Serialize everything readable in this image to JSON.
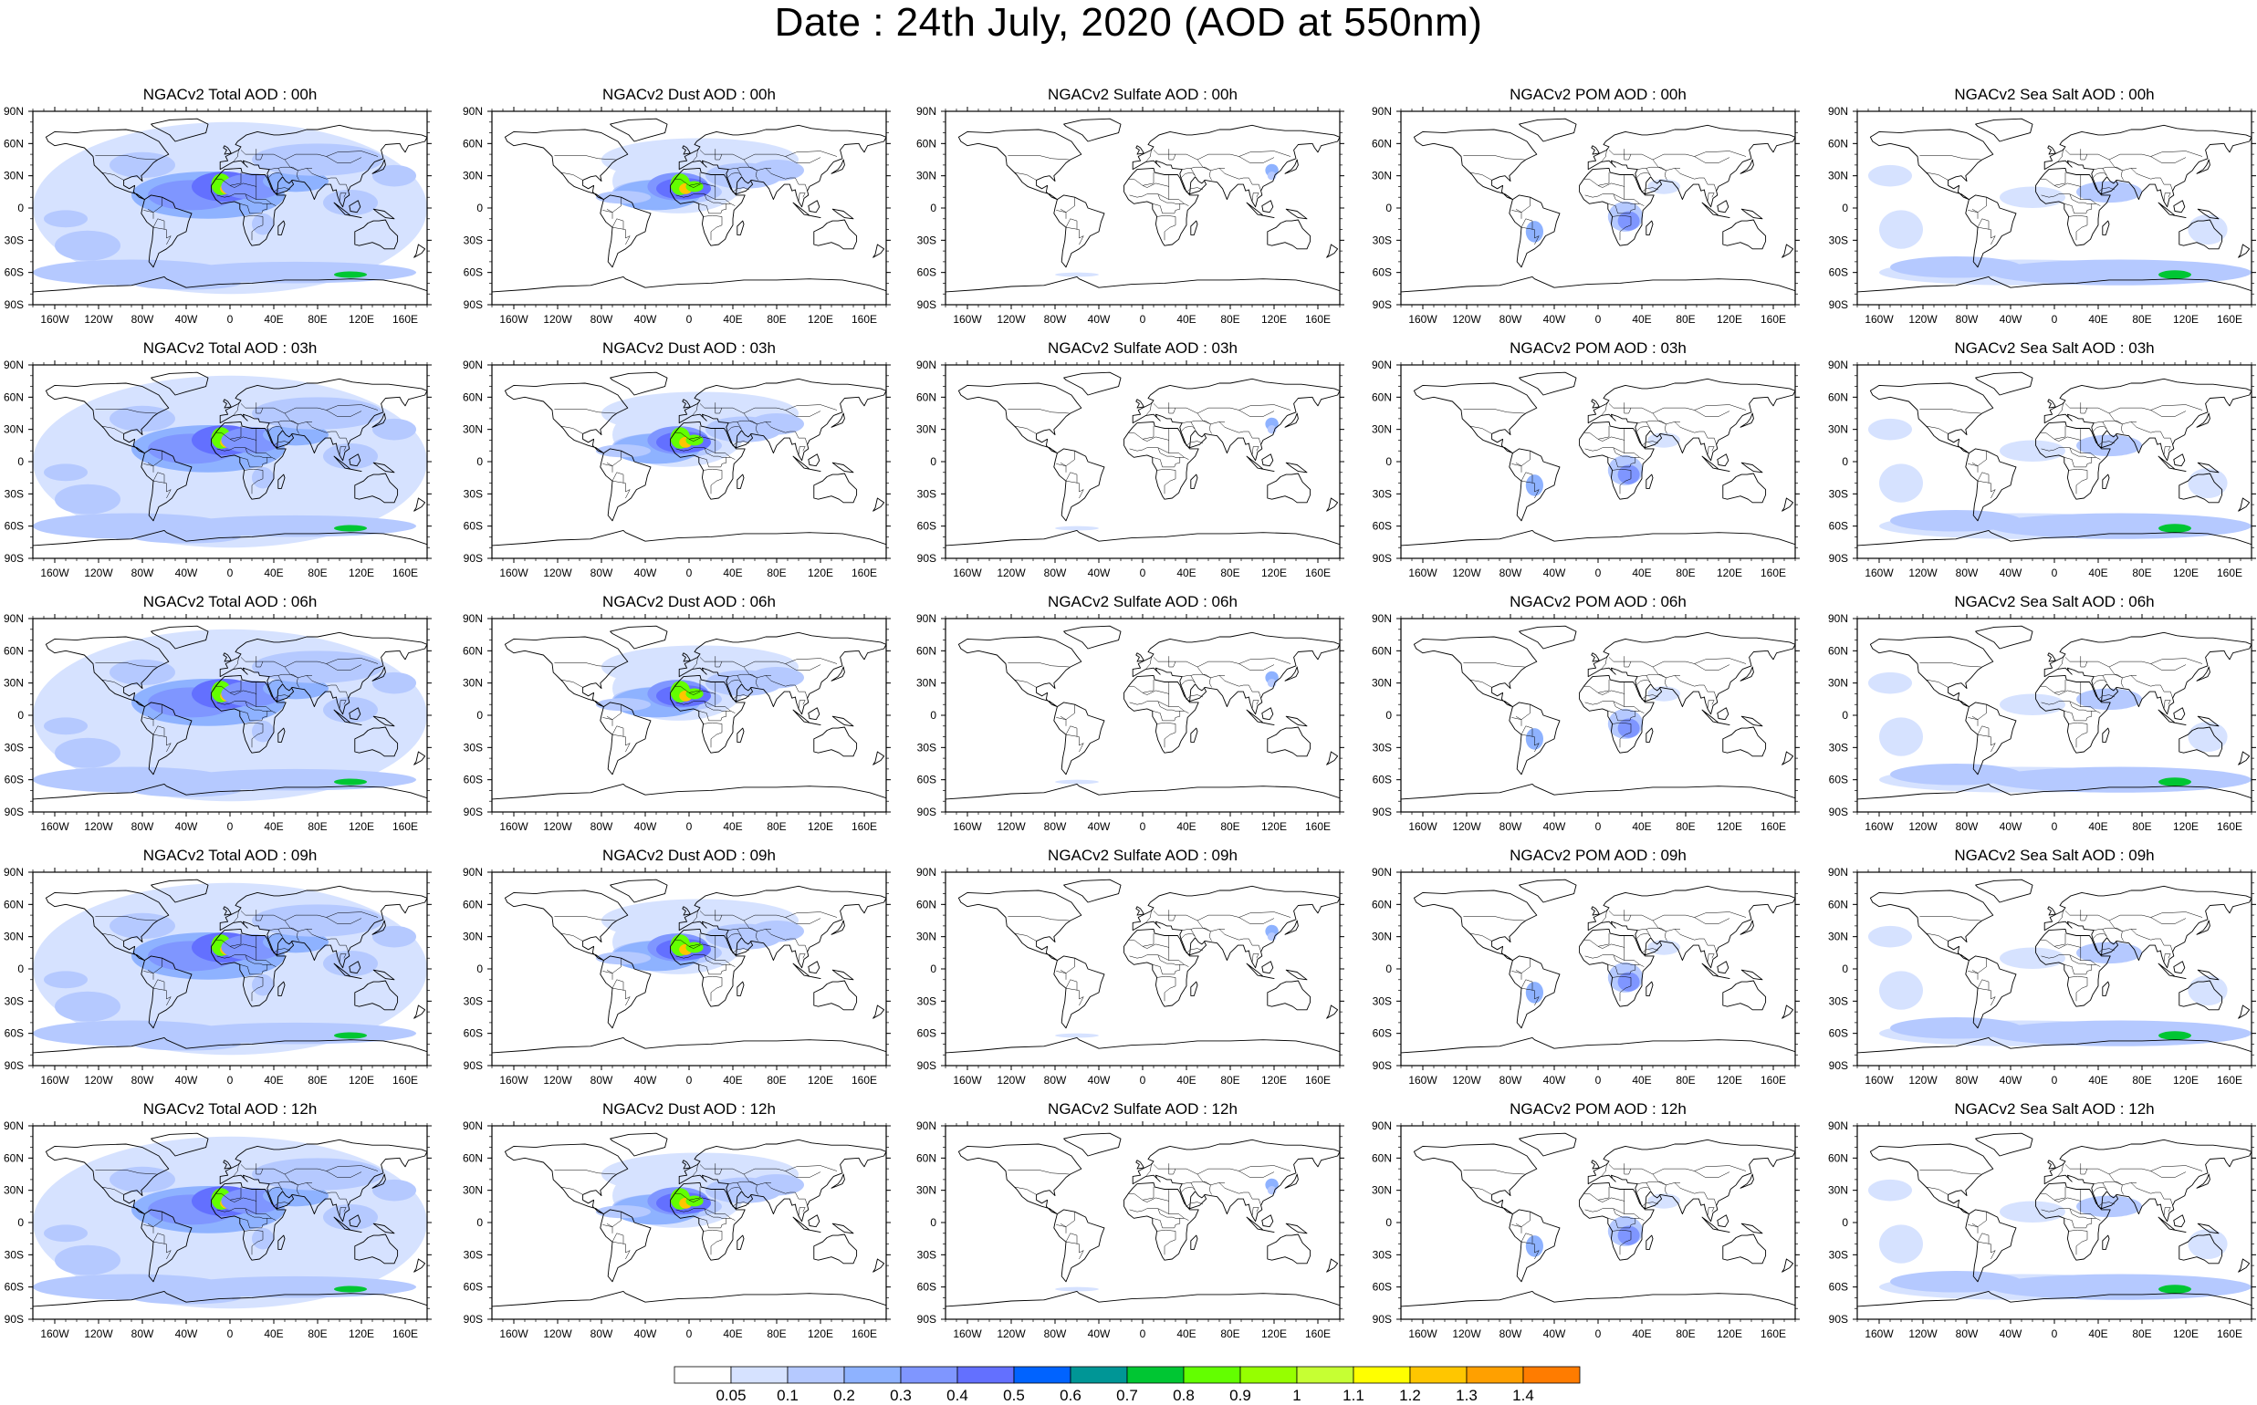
{
  "title": "Date : 24th July, 2020 (AOD at 550nm)",
  "rows": [
    [
      "NGACv2 Total AOD : 00h",
      "NGACv2 Dust AOD : 00h",
      "NGACv2 Sulfate AOD : 00h",
      "NGACv2 POM AOD : 00h",
      "NGACv2 Sea Salt AOD : 00h"
    ],
    [
      "NGACv2 Total AOD : 03h",
      "NGACv2 Dust AOD : 03h",
      "NGACv2 Sulfate AOD : 03h",
      "NGACv2 POM AOD : 03h",
      "NGACv2 Sea Salt AOD : 03h"
    ],
    [
      "NGACv2 Total AOD : 06h",
      "NGACv2 Dust AOD : 06h",
      "NGACv2 Sulfate AOD : 06h",
      "NGACv2 POM AOD : 06h",
      "NGACv2 Sea Salt AOD : 06h"
    ],
    [
      "NGACv2 Total AOD : 09h",
      "NGACv2 Dust AOD : 09h",
      "NGACv2 Sulfate AOD : 09h",
      "NGACv2 POM AOD : 09h",
      "NGACv2 Sea Salt  AOD : 09h"
    ],
    [
      "NGACv2 Total AOD : 12h",
      "NGACv2 Dust AOD : 12h",
      "NGACv2 Sulfate AOD : 12h",
      "NGACv2 POM  AOD : 12h",
      "NGACv2 Sea Salt AOD : 12h"
    ]
  ],
  "lat_ticks": [
    "90N",
    "60N",
    "30N",
    "0",
    "30S",
    "60S",
    "90S"
  ],
  "lon_ticks": [
    "160W",
    "120W",
    "80W",
    "40W",
    "0",
    "40E",
    "80E",
    "120E",
    "160E"
  ],
  "colorbar": {
    "levels": [
      "0.05",
      "0.1",
      "0.2",
      "0.3",
      "0.4",
      "0.5",
      "0.6",
      "0.7",
      "0.8",
      "0.9",
      "1",
      "1.1",
      "1.2",
      "1.3",
      "1.4"
    ],
    "colors": [
      "#ffffff",
      "#d6e2ff",
      "#b5c9ff",
      "#8eb2ff",
      "#7f96ff",
      "#6370ff",
      "#0063ff",
      "#009696",
      "#00c633",
      "#63ff00",
      "#96ff00",
      "#c6ff33",
      "#ffff00",
      "#ffc600",
      "#ffa000",
      "#ff7c00",
      "#ff1900"
    ]
  },
  "colors": {
    "haze_light": "#d6e2ff",
    "haze_mid": "#b5c9ff",
    "haze_dark": "#7f96ff",
    "dust_core": "#63ff00",
    "dust_peak": "#ffc600",
    "coast": "#000000"
  }
}
